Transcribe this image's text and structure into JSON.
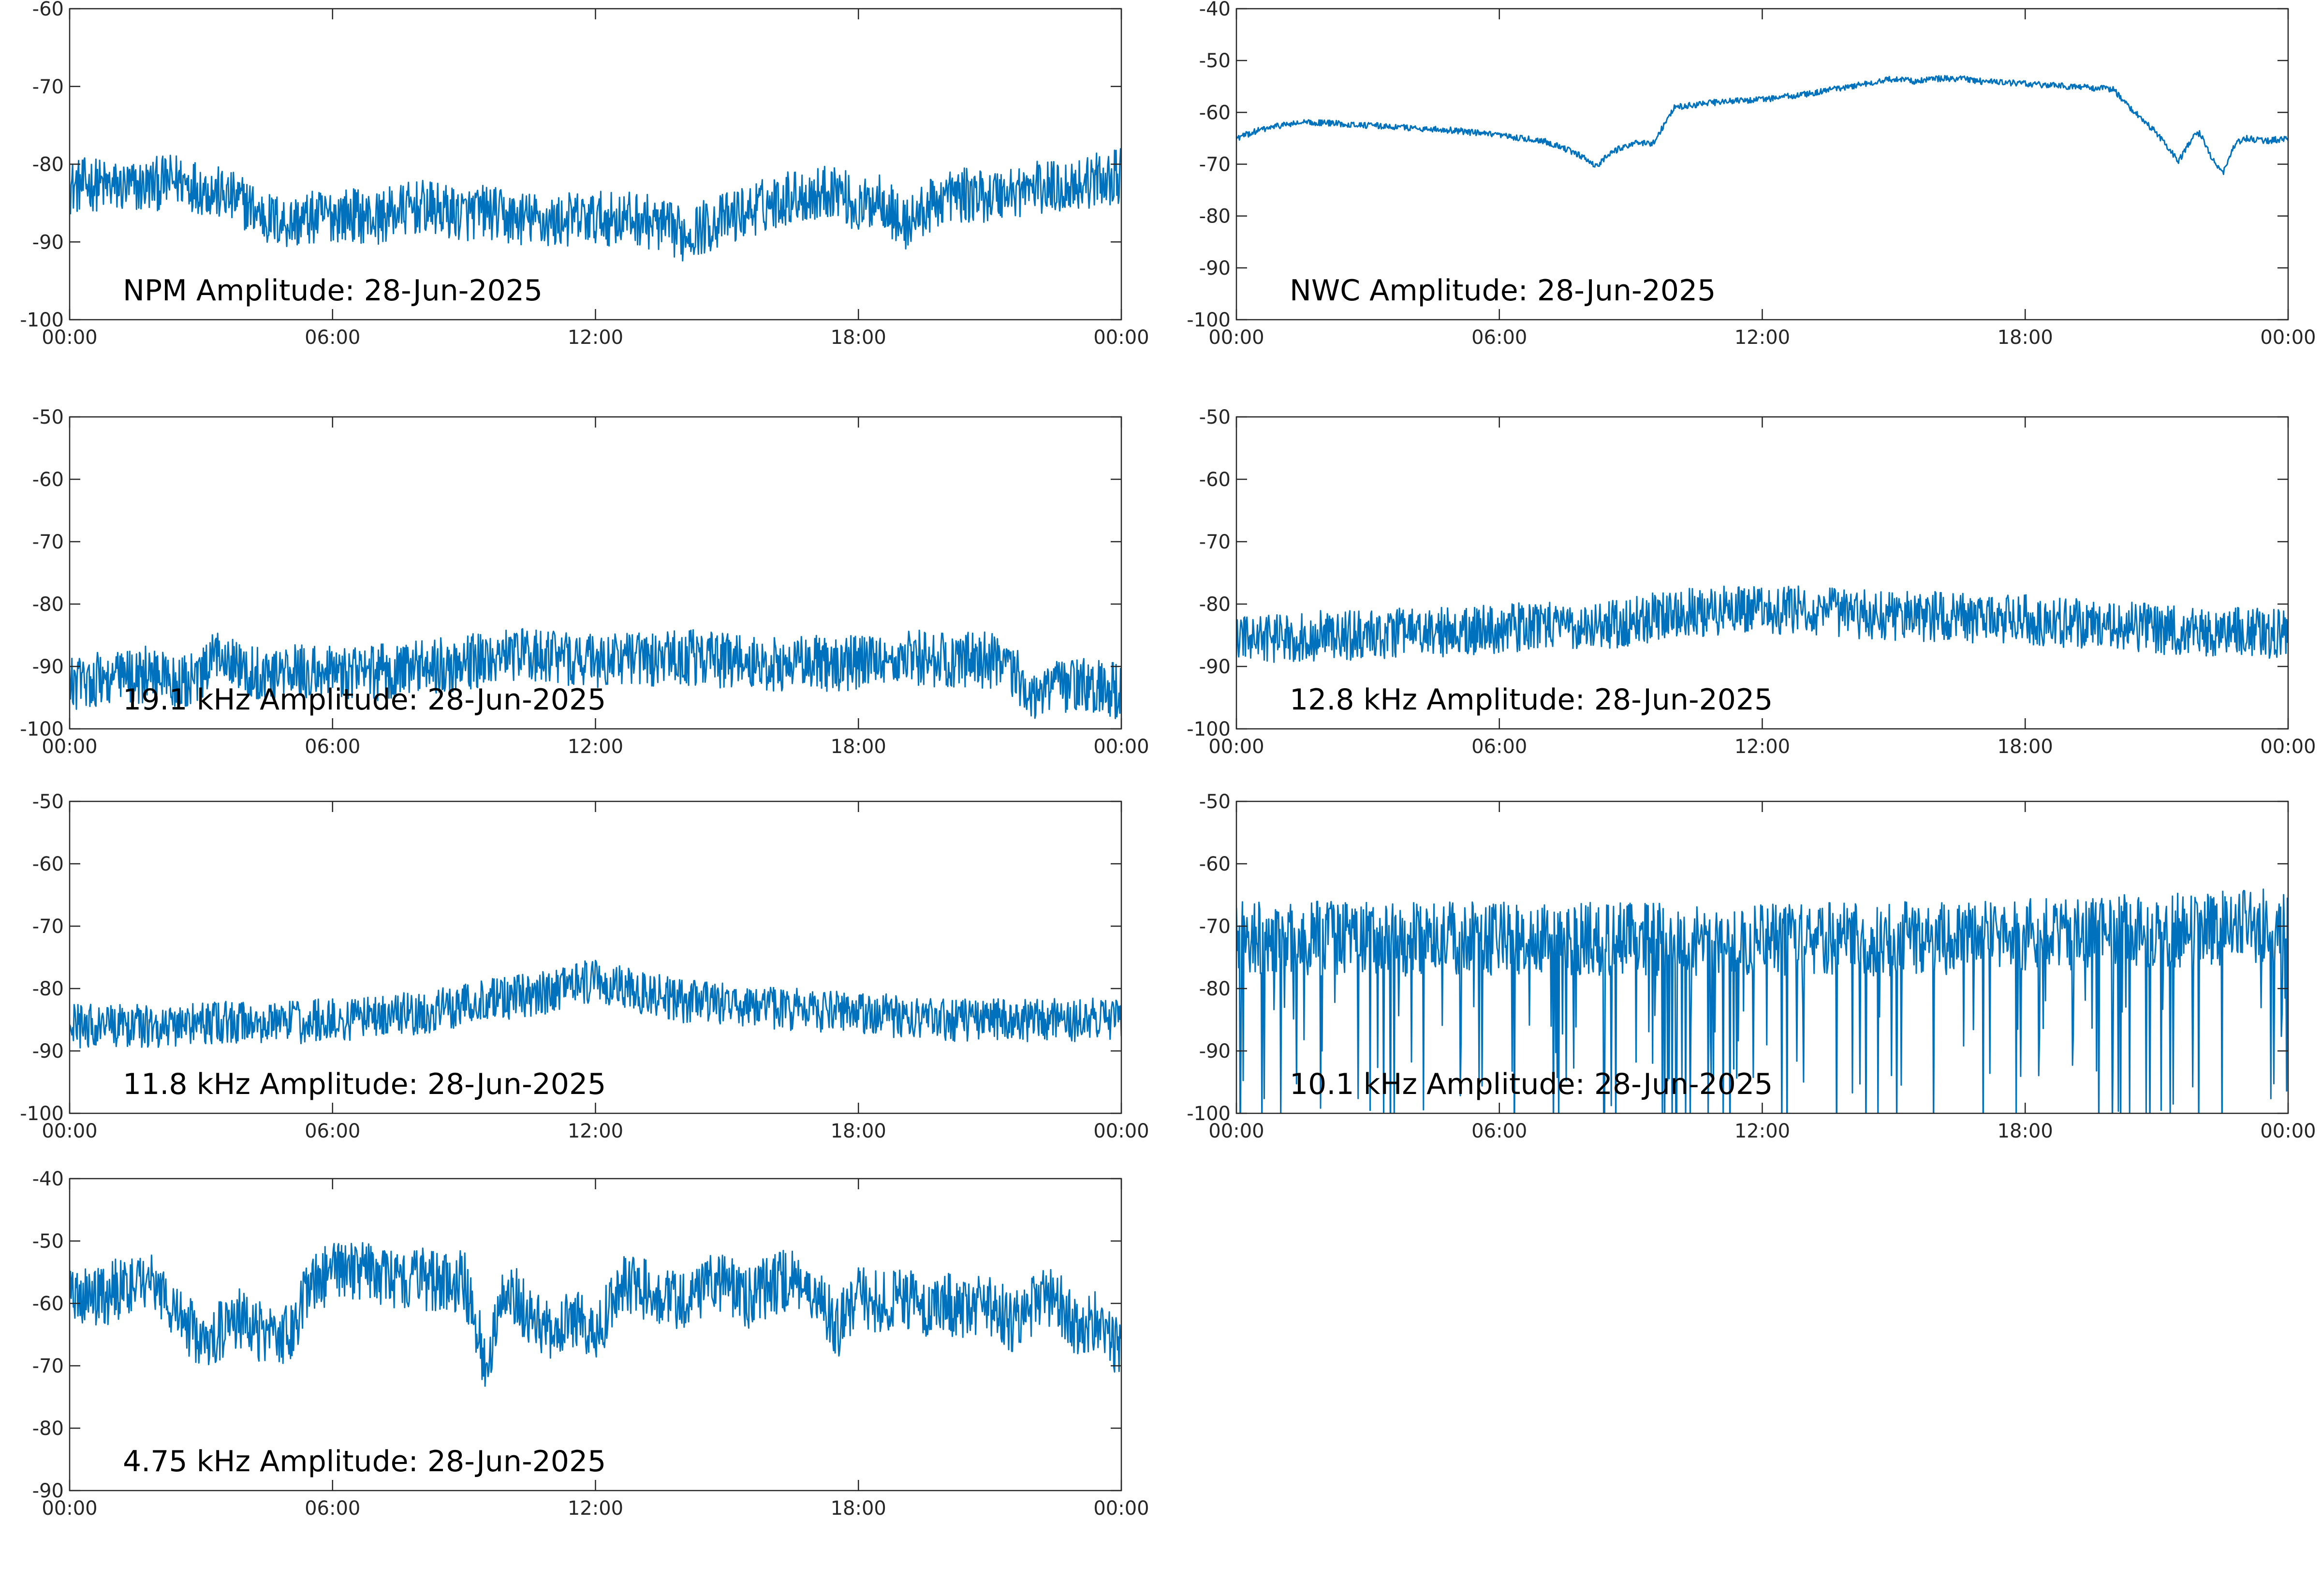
{
  "figure": {
    "line_color": "#0072BD"
  },
  "chart_data": [
    {
      "type": "line",
      "title": "NPM Amplitude: 28-Jun-2025",
      "xlabel": "",
      "ylabel": "",
      "x_tick_labels": [
        "00:00",
        "06:00",
        "12:00",
        "18:00",
        "00:00"
      ],
      "x_ticks_hours": [
        0,
        6,
        12,
        18,
        24
      ],
      "ylim": [
        -100,
        -60
      ],
      "y_ticks": [
        -100,
        -90,
        -80,
        -70,
        -60
      ],
      "grid": false,
      "series": [
        {
          "x_hours": [
            0,
            0.5,
            1,
            1.5,
            2,
            2.5,
            3,
            3.5,
            4,
            4.5,
            5,
            5.5,
            6,
            6.5,
            7,
            7.5,
            8,
            8.5,
            9,
            9.5,
            10,
            10.5,
            11,
            11.5,
            12,
            12.5,
            13,
            13.5,
            14,
            14.5,
            15,
            15.5,
            16,
            16.5,
            17,
            17.5,
            18,
            18.5,
            19,
            19.5,
            20,
            20.5,
            21,
            21.5,
            22,
            22.5,
            23,
            23.5,
            24
          ],
          "values": [
            -83,
            -82.5,
            -83,
            -83,
            -82.5,
            -82,
            -83,
            -84,
            -85,
            -87,
            -87.5,
            -87,
            -86.5,
            -86.5,
            -87,
            -86,
            -85.5,
            -86,
            -86.5,
            -86,
            -87,
            -87,
            -87.5,
            -87,
            -87,
            -87,
            -87,
            -88,
            -89,
            -88,
            -87,
            -86,
            -85,
            -84,
            -84,
            -83,
            -86,
            -84,
            -88,
            -86,
            -84,
            -84,
            -84,
            -83.5,
            -83,
            -83,
            -82.5,
            -82,
            -81.5
          ],
          "band": 3.5
        }
      ]
    },
    {
      "type": "line",
      "title": "NWC Amplitude: 28-Jun-2025",
      "xlabel": "",
      "ylabel": "",
      "x_tick_labels": [
        "00:00",
        "06:00",
        "12:00",
        "18:00",
        "00:00"
      ],
      "x_ticks_hours": [
        0,
        6,
        12,
        18,
        24
      ],
      "ylim": [
        -100,
        -40
      ],
      "y_ticks": [
        -100,
        -90,
        -80,
        -70,
        -60,
        -50,
        -40
      ],
      "grid": false,
      "series": [
        {
          "x_hours": [
            0,
            0.5,
            1,
            1.5,
            2,
            3,
            4,
            5,
            6,
            6.5,
            7,
            7.2,
            7.5,
            8,
            8.2,
            8.5,
            9,
            9.5,
            10,
            11,
            12,
            13,
            14,
            15,
            15.5,
            16,
            16.5,
            17,
            18,
            19,
            20,
            20.5,
            21,
            21.5,
            21.8,
            22,
            22.2,
            22.5,
            22.8,
            23,
            23.5,
            24
          ],
          "values": [
            -65,
            -63.5,
            -62.5,
            -62,
            -62,
            -62.5,
            -63,
            -63.5,
            -64.5,
            -65,
            -65.5,
            -66,
            -67,
            -69,
            -70.5,
            -68,
            -66,
            -66,
            -59,
            -58,
            -57.5,
            -56.5,
            -55,
            -53.5,
            -54,
            -53.5,
            -53.5,
            -54,
            -54.5,
            -55,
            -55.5,
            -60,
            -64,
            -69.5,
            -65,
            -64,
            -68,
            -72,
            -66,
            -65,
            -65.5,
            -65
          ],
          "band": 0.6
        }
      ]
    },
    {
      "type": "line",
      "title": "19.1 kHz Amplitude: 28-Jun-2025",
      "xlabel": "",
      "ylabel": "",
      "x_tick_labels": [
        "00:00",
        "06:00",
        "12:00",
        "18:00",
        "00:00"
      ],
      "x_ticks_hours": [
        0,
        6,
        12,
        18,
        24
      ],
      "ylim": [
        -100,
        -50
      ],
      "y_ticks": [
        -100,
        -90,
        -80,
        -70,
        -60,
        -50
      ],
      "grid": false,
      "series": [
        {
          "x_hours": [
            0,
            0.5,
            1,
            1.5,
            2,
            2.5,
            3,
            3.5,
            4,
            5,
            6,
            7,
            8,
            9,
            10,
            11,
            12,
            13,
            14,
            15,
            16,
            17,
            18,
            19,
            20,
            21,
            21.5,
            22,
            23,
            24
          ],
          "values": [
            -93,
            -92,
            -92,
            -91.5,
            -91,
            -93,
            -92,
            -87,
            -91,
            -91,
            -91,
            -91,
            -90,
            -89.5,
            -88,
            -88.5,
            -89,
            -89,
            -88.5,
            -89,
            -89.5,
            -89.5,
            -89.5,
            -88.5,
            -89,
            -89,
            -91,
            -94,
            -93,
            -94
          ],
          "band": 4.5
        }
      ]
    },
    {
      "type": "line",
      "title": "12.8 kHz Amplitude: 28-Jun-2025",
      "xlabel": "",
      "ylabel": "",
      "x_tick_labels": [
        "00:00",
        "06:00",
        "12:00",
        "18:00",
        "00:00"
      ],
      "x_ticks_hours": [
        0,
        6,
        12,
        18,
        24
      ],
      "ylim": [
        -100,
        -50
      ],
      "y_ticks": [
        -100,
        -90,
        -80,
        -70,
        -60,
        -50
      ],
      "grid": false,
      "series": [
        {
          "x_hours": [
            0,
            1,
            2,
            3,
            4,
            5,
            6,
            7,
            8,
            9,
            10,
            11,
            12,
            13,
            14,
            15,
            16,
            17,
            18,
            19,
            20,
            21,
            22,
            23,
            24
          ],
          "values": [
            -85.5,
            -85.5,
            -85,
            -85,
            -84.5,
            -84.5,
            -84,
            -83.5,
            -83.5,
            -83,
            -81.5,
            -81,
            -81,
            -81,
            -81.5,
            -82,
            -82,
            -82.5,
            -82.5,
            -83,
            -83.5,
            -84,
            -84.5,
            -84.5,
            -85
          ],
          "band": 4
        }
      ]
    },
    {
      "type": "line",
      "title": "11.8 kHz Amplitude: 28-Jun-2025",
      "xlabel": "",
      "ylabel": "",
      "x_tick_labels": [
        "00:00",
        "06:00",
        "12:00",
        "18:00",
        "00:00"
      ],
      "x_ticks_hours": [
        0,
        6,
        12,
        18,
        24
      ],
      "ylim": [
        -100,
        -50
      ],
      "y_ticks": [
        -100,
        -90,
        -80,
        -70,
        -60,
        -50
      ],
      "grid": false,
      "series": [
        {
          "x_hours": [
            0,
            1,
            2,
            3,
            4,
            5,
            6,
            7,
            8,
            9,
            10,
            11,
            11.5,
            12,
            12.5,
            13,
            14,
            15,
            16,
            17,
            18,
            19,
            20,
            21,
            22,
            23,
            24
          ],
          "values": [
            -86,
            -86,
            -86,
            -85.5,
            -85.5,
            -85.5,
            -85,
            -84.5,
            -84,
            -82.5,
            -81.5,
            -80.5,
            -79.5,
            -78.5,
            -79.5,
            -80.5,
            -82,
            -82.5,
            -83,
            -83.5,
            -84,
            -84.5,
            -85,
            -85,
            -85,
            -85,
            -85
          ],
          "band": 3.5
        }
      ]
    },
    {
      "type": "line",
      "title": "10.1 kHz Amplitude: 28-Jun-2025",
      "xlabel": "",
      "ylabel": "",
      "x_tick_labels": [
        "00:00",
        "06:00",
        "12:00",
        "18:00",
        "00:00"
      ],
      "x_ticks_hours": [
        0,
        6,
        12,
        18,
        24
      ],
      "ylim": [
        -100,
        -50
      ],
      "y_ticks": [
        -100,
        -90,
        -80,
        -70,
        -60,
        -50
      ],
      "grid": false,
      "series": [
        {
          "x_hours": [
            0,
            2,
            4,
            6,
            8,
            10,
            12,
            14,
            16,
            18,
            20,
            22,
            23,
            24
          ],
          "values": [
            -72,
            -72,
            -72,
            -72,
            -72,
            -72,
            -72,
            -72,
            -72,
            -71.5,
            -71,
            -70.5,
            -70,
            -70
          ],
          "band": 6
        }
      ]
    },
    {
      "type": "line",
      "title": "4.75 kHz Amplitude: 28-Jun-2025",
      "xlabel": "",
      "ylabel": "",
      "x_tick_labels": [
        "00:00",
        "06:00",
        "12:00",
        "18:00",
        "00:00"
      ],
      "x_ticks_hours": [
        0,
        6,
        12,
        18,
        24
      ],
      "ylim": [
        -90,
        -40
      ],
      "y_ticks": [
        -90,
        -80,
        -70,
        -60,
        -50,
        -40
      ],
      "grid": false,
      "series": [
        {
          "x_hours": [
            0,
            0.5,
            1,
            1.5,
            2,
            2.5,
            3,
            3.5,
            4,
            4.5,
            5,
            5.5,
            6,
            6.5,
            7,
            7.5,
            8,
            8.5,
            9,
            9.5,
            10,
            10.5,
            11,
            11.5,
            12,
            12.5,
            13,
            13.5,
            14,
            14.5,
            15,
            15.5,
            16,
            16.5,
            17,
            17.5,
            18,
            18.5,
            19,
            19.5,
            20,
            20.5,
            21,
            21.5,
            22,
            22.5,
            23,
            23.5,
            24
          ],
          "values": [
            -57,
            -60,
            -58,
            -56,
            -57,
            -62,
            -66,
            -64,
            -62,
            -66,
            -65,
            -57,
            -55,
            -55,
            -55.5,
            -56,
            -56,
            -57,
            -56,
            -70,
            -57,
            -62,
            -64,
            -62,
            -66,
            -57,
            -57,
            -60,
            -59,
            -57,
            -57,
            -59,
            -57,
            -56,
            -58,
            -64,
            -59,
            -60,
            -58,
            -62,
            -60,
            -61,
            -60,
            -63,
            -60,
            -59,
            -64,
            -62,
            -68
          ],
          "band": 5
        }
      ]
    }
  ]
}
